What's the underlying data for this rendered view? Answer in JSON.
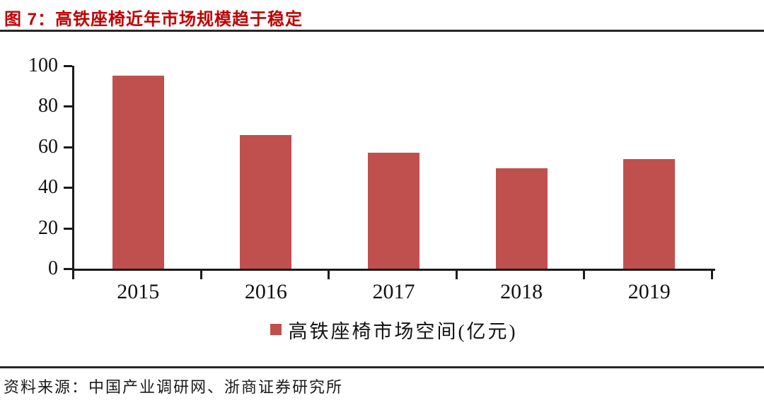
{
  "page": {
    "title": "图 7：高铁座椅近年市场规模趋于稳定",
    "source": "资料来源：中国产业调研网、浙商证券研究所"
  },
  "chart_data": {
    "type": "bar",
    "categories": [
      "2015",
      "2016",
      "2017",
      "2018",
      "2019"
    ],
    "values": [
      95,
      66,
      57,
      49.5,
      54
    ],
    "title": "高铁座椅近年市场规模趋于稳定",
    "xlabel": "",
    "ylabel": "",
    "ylim": [
      0,
      100
    ],
    "yticks": [
      0,
      20,
      40,
      60,
      80,
      100
    ],
    "legend": [
      "高铁座椅市场空间(亿元)"
    ],
    "legend_position": "bottom",
    "grid": false,
    "bar_color": "#c0504d",
    "axis_color": "#1a1a1a"
  },
  "colors": {
    "title_red": "#c00000",
    "bar_red": "#c0504d",
    "rule_dark": "#262626"
  }
}
